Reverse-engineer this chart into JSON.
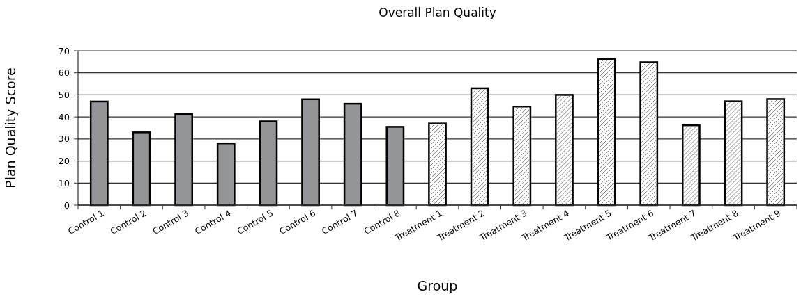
{
  "chart_data": {
    "type": "bar",
    "title": "Overall Plan Quality",
    "xlabel": "Group",
    "ylabel": "Plan Quality Score",
    "categories": [
      "Control 1",
      "Control 2",
      "Control 3",
      "Control 4",
      "Control 5",
      "Control 6",
      "Control 7",
      "Control 8",
      "Treatment 1",
      "Treatment 2",
      "Treatment 3",
      "Treatment 4",
      "Treatment 5",
      "Treatment 6",
      "Treatment 7",
      "Treatment 8",
      "Treatment 9"
    ],
    "values": [
      47,
      33,
      41.3,
      28,
      38,
      48,
      46,
      35.5,
      37,
      53,
      44.7,
      50,
      66.2,
      64.8,
      36.2,
      47.1,
      48.1
    ],
    "colors": [
      "#939598",
      "#939598",
      "#939598",
      "#939598",
      "#939598",
      "#939598",
      "#939598",
      "#939598",
      "#ffffff",
      "#ffffff",
      "#ffffff",
      "#ffffff",
      "#ffffff",
      "#ffffff",
      "#ffffff",
      "#ffffff",
      "#ffffff"
    ],
    "ylim": [
      0,
      70
    ],
    "yticks": [
      0,
      10,
      20,
      30,
      40,
      50,
      60,
      70
    ],
    "grid": "y"
  }
}
